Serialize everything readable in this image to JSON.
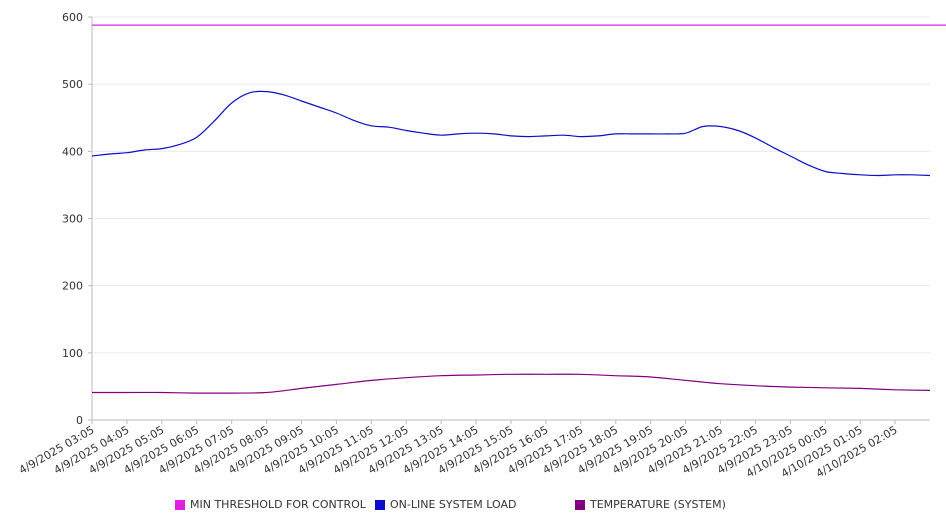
{
  "chart_data": {
    "type": "line",
    "title": "",
    "xlabel": "",
    "ylabel": "",
    "ylim": [
      0,
      600
    ],
    "yticks": [
      0,
      100,
      200,
      300,
      400,
      500,
      600
    ],
    "grid": true,
    "legend_position": "bottom",
    "x": [
      "4/9/2025 03:05",
      "4/9/2025 04:05",
      "4/9/2025 05:05",
      "4/9/2025 06:05",
      "4/9/2025 07:05",
      "4/9/2025 08:05",
      "4/9/2025 09:05",
      "4/9/2025 10:05",
      "4/9/2025 11:05",
      "4/9/2025 12:05",
      "4/9/2025 13:05",
      "4/9/2025 14:05",
      "4/9/2025 15:05",
      "4/9/2025 16:05",
      "4/9/2025 17:05",
      "4/9/2025 18:05",
      "4/9/2025 19:05",
      "4/9/2025 20:05",
      "4/9/2025 21:05",
      "4/9/2025 22:05",
      "4/9/2025 23:05",
      "4/10/2025 00:05",
      "4/10/2025 01:05",
      "4/10/2025 02:05"
    ],
    "series": [
      {
        "name": "MIN THRESHOLD FOR CONTROL",
        "color": "#e020e0",
        "points": [
          [
            "4/9/2025 03:05",
            588
          ],
          [
            "4/10/2025 02:05",
            588
          ],
          [
            "4/10/2025 03:05",
            588
          ]
        ]
      },
      {
        "name": "ON-LINE SYSTEM LOAD",
        "color": "#0a10c8",
        "points": [
          [
            "4/9/2025 03:05",
            393
          ],
          [
            "4/9/2025 03:35",
            396
          ],
          [
            "4/9/2025 04:05",
            398
          ],
          [
            "4/9/2025 04:35",
            402
          ],
          [
            "4/9/2025 05:05",
            404
          ],
          [
            "4/9/2025 05:35",
            410
          ],
          [
            "4/9/2025 06:05",
            421
          ],
          [
            "4/9/2025 06:35",
            445
          ],
          [
            "4/9/2025 07:05",
            472
          ],
          [
            "4/9/2025 07:35",
            487
          ],
          [
            "4/9/2025 08:05",
            489
          ],
          [
            "4/9/2025 08:35",
            484
          ],
          [
            "4/9/2025 09:05",
            475
          ],
          [
            "4/9/2025 09:35",
            466
          ],
          [
            "4/9/2025 10:05",
            457
          ],
          [
            "4/9/2025 10:35",
            446
          ],
          [
            "4/9/2025 11:05",
            438
          ],
          [
            "4/9/2025 11:35",
            436
          ],
          [
            "4/9/2025 12:05",
            431
          ],
          [
            "4/9/2025 12:35",
            427
          ],
          [
            "4/9/2025 13:05",
            424
          ],
          [
            "4/9/2025 13:35",
            426
          ],
          [
            "4/9/2025 14:05",
            427
          ],
          [
            "4/9/2025 14:35",
            426
          ],
          [
            "4/9/2025 15:05",
            423
          ],
          [
            "4/9/2025 15:35",
            422
          ],
          [
            "4/9/2025 16:05",
            423
          ],
          [
            "4/9/2025 16:35",
            424
          ],
          [
            "4/9/2025 17:05",
            422
          ],
          [
            "4/9/2025 17:35",
            423
          ],
          [
            "4/9/2025 18:05",
            426
          ],
          [
            "4/9/2025 18:35",
            426
          ],
          [
            "4/9/2025 19:05",
            426
          ],
          [
            "4/9/2025 19:35",
            426
          ],
          [
            "4/9/2025 20:05",
            427
          ],
          [
            "4/9/2025 20:35",
            437
          ],
          [
            "4/9/2025 21:05",
            437
          ],
          [
            "4/9/2025 21:35",
            431
          ],
          [
            "4/9/2025 22:05",
            420
          ],
          [
            "4/9/2025 22:35",
            406
          ],
          [
            "4/9/2025 23:05",
            393
          ],
          [
            "4/9/2025 23:35",
            380
          ],
          [
            "4/10/2025 00:05",
            370
          ],
          [
            "4/10/2025 00:35",
            367
          ],
          [
            "4/10/2025 01:05",
            365
          ],
          [
            "4/10/2025 01:35",
            364
          ],
          [
            "4/10/2025 02:05",
            365
          ],
          [
            "4/10/2025 02:35",
            365
          ],
          [
            "4/10/2025 03:05",
            364
          ]
        ]
      },
      {
        "name": "TEMPERATURE (SYSTEM)",
        "color": "#800080",
        "points": [
          [
            "4/9/2025 03:05",
            41
          ],
          [
            "4/9/2025 04:05",
            41
          ],
          [
            "4/9/2025 05:05",
            41
          ],
          [
            "4/9/2025 06:05",
            40
          ],
          [
            "4/9/2025 07:05",
            40
          ],
          [
            "4/9/2025 08:05",
            41
          ],
          [
            "4/9/2025 09:05",
            47
          ],
          [
            "4/9/2025 10:05",
            53
          ],
          [
            "4/9/2025 11:05",
            59
          ],
          [
            "4/9/2025 12:05",
            63
          ],
          [
            "4/9/2025 13:05",
            66
          ],
          [
            "4/9/2025 14:05",
            67
          ],
          [
            "4/9/2025 15:05",
            68
          ],
          [
            "4/9/2025 16:05",
            68
          ],
          [
            "4/9/2025 17:05",
            68
          ],
          [
            "4/9/2025 18:05",
            66
          ],
          [
            "4/9/2025 19:05",
            64
          ],
          [
            "4/9/2025 20:05",
            59
          ],
          [
            "4/9/2025 21:05",
            54
          ],
          [
            "4/9/2025 22:05",
            51
          ],
          [
            "4/9/2025 23:05",
            49
          ],
          [
            "4/10/2025 00:05",
            48
          ],
          [
            "4/10/2025 01:05",
            47
          ],
          [
            "4/10/2025 02:05",
            45
          ],
          [
            "4/10/2025 03:05",
            44
          ]
        ]
      }
    ]
  }
}
